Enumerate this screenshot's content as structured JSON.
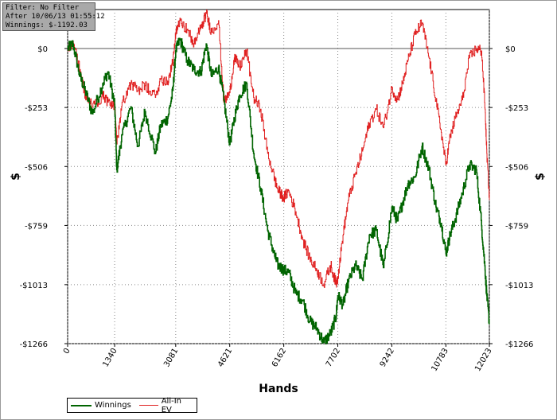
{
  "info": {
    "filter": "Filter: No Filter",
    "after": "After 10/06/13 01:55:12",
    "winnings": "Winnings: $-1192.03"
  },
  "colors": {
    "winnings": "#006400",
    "allin_ev": "#e02020",
    "grid": "#8a8a8a",
    "zero_line": "#555555"
  },
  "chart_data": {
    "type": "line",
    "xlabel": "Hands",
    "ylabel": "$",
    "xlim": [
      0,
      12023
    ],
    "ylim": [
      -1266,
      0
    ],
    "x_ticks": [
      0,
      1340,
      3081,
      4621,
      6162,
      7702,
      9242,
      10783,
      12023
    ],
    "x_tick_labels": [
      "0",
      "1340",
      "3081",
      "4621",
      "6162",
      "7702",
      "9242",
      "10783",
      "12023"
    ],
    "y_ticks": [
      0,
      -253,
      -506,
      -759,
      -1013,
      -1266
    ],
    "y_tick_labels": [
      "$0",
      "-$253",
      "-$506",
      "-$759",
      "-$1013",
      "-$1266"
    ],
    "grid": true,
    "legend_position": "bottom-left",
    "series": [
      {
        "name": "Winnings",
        "color": "#006400",
        "x": [
          0,
          150,
          350,
          500,
          700,
          1000,
          1150,
          1340,
          1400,
          1550,
          1800,
          2000,
          2200,
          2500,
          2650,
          2850,
          3000,
          3081,
          3200,
          3400,
          3600,
          3800,
          3950,
          4100,
          4300,
          4450,
          4621,
          4750,
          4900,
          5100,
          5300,
          5500,
          5700,
          5900,
          6000,
          6162,
          6300,
          6500,
          6700,
          6900,
          7100,
          7300,
          7500,
          7650,
          7702,
          7850,
          8000,
          8200,
          8400,
          8600,
          8800,
          9000,
          9242,
          9400,
          9550,
          9700,
          9900,
          10100,
          10300,
          10500,
          10650,
          10783,
          10900,
          11050,
          11250,
          11450,
          11650,
          11800,
          11900,
          11950,
          12023
        ],
        "y": [
          0,
          20,
          -120,
          -180,
          -280,
          -150,
          -100,
          -240,
          -520,
          -370,
          -250,
          -420,
          -270,
          -450,
          -330,
          -300,
          -180,
          -10,
          40,
          -50,
          -90,
          -100,
          20,
          -120,
          -80,
          -220,
          -410,
          -300,
          -200,
          -150,
          -450,
          -600,
          -780,
          -890,
          -930,
          -950,
          -960,
          -1050,
          -1080,
          -1170,
          -1200,
          -1260,
          -1220,
          -1150,
          -1060,
          -1100,
          -1000,
          -930,
          -990,
          -800,
          -780,
          -940,
          -680,
          -740,
          -660,
          -580,
          -550,
          -420,
          -520,
          -680,
          -750,
          -880,
          -800,
          -730,
          -620,
          -500,
          -520,
          -760,
          -950,
          -1060,
          -1180
        ]
      },
      {
        "name": "All-In EV",
        "color": "#e02020",
        "x": [
          0,
          150,
          350,
          500,
          700,
          1000,
          1150,
          1340,
          1400,
          1550,
          1800,
          2000,
          2200,
          2500,
          2650,
          2850,
          3000,
          3081,
          3200,
          3400,
          3600,
          3800,
          3950,
          4100,
          4300,
          4450,
          4621,
          4750,
          4900,
          5100,
          5300,
          5500,
          5700,
          5900,
          6000,
          6162,
          6300,
          6500,
          6700,
          6900,
          7100,
          7300,
          7500,
          7650,
          7702,
          7850,
          8000,
          8200,
          8400,
          8600,
          8800,
          9000,
          9242,
          9400,
          9550,
          9700,
          9900,
          10100,
          10300,
          10500,
          10650,
          10783,
          10900,
          11050,
          11250,
          11450,
          11650,
          11800,
          11900,
          11950,
          12023
        ],
        "y": [
          0,
          30,
          -90,
          -200,
          -250,
          -200,
          -230,
          -250,
          -410,
          -230,
          -150,
          -180,
          -160,
          -210,
          -130,
          -140,
          -60,
          60,
          130,
          80,
          20,
          90,
          150,
          70,
          120,
          -230,
          -190,
          -40,
          -80,
          -10,
          -210,
          -260,
          -450,
          -560,
          -610,
          -640,
          -610,
          -700,
          -820,
          -900,
          -950,
          -1010,
          -930,
          -1010,
          -980,
          -800,
          -650,
          -540,
          -440,
          -320,
          -260,
          -340,
          -170,
          -220,
          -150,
          -50,
          60,
          110,
          -40,
          -220,
          -360,
          -500,
          -380,
          -300,
          -220,
          -40,
          0,
          -10,
          -260,
          -450,
          -650
        ]
      }
    ]
  },
  "legend": {
    "winnings": "Winnings",
    "allin_ev": "All-In EV"
  }
}
